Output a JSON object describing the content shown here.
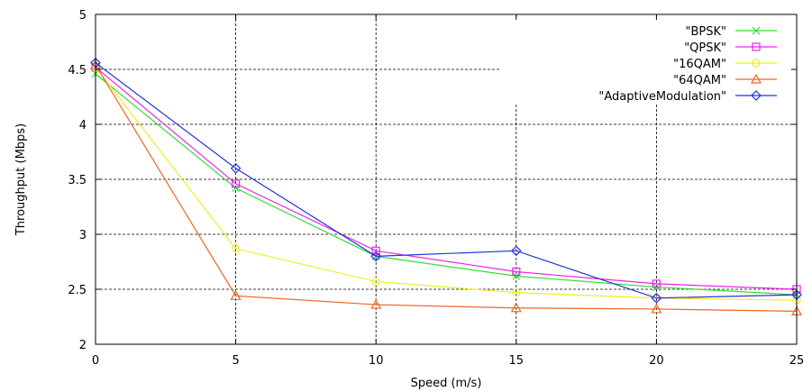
{
  "chart_data": {
    "type": "line",
    "xlabel": "Speed (m/s)",
    "ylabel": "Throughput (Mbps)",
    "xlim": [
      0,
      25
    ],
    "ylim": [
      2,
      5
    ],
    "xticks": [
      0,
      5,
      10,
      15,
      20,
      25
    ],
    "yticks": [
      2,
      2.5,
      3,
      3.5,
      4,
      4.5,
      5
    ],
    "x": [
      0,
      5,
      10,
      15,
      20,
      25
    ],
    "grid": true,
    "legend_position": "top-right",
    "series": [
      {
        "name": "\"BPSK\"",
        "color": "#33dd33",
        "marker": "x",
        "values": [
          4.46,
          3.42,
          2.8,
          2.62,
          2.52,
          2.45
        ]
      },
      {
        "name": "\"QPSK\"",
        "color": "#ee22ee",
        "marker": "square",
        "values": [
          4.52,
          3.46,
          2.85,
          2.66,
          2.55,
          2.5
        ]
      },
      {
        "name": "\"16QAM\"",
        "color": "#eeee22",
        "marker": "circle",
        "values": [
          4.52,
          2.87,
          2.57,
          2.47,
          2.42,
          2.4
        ]
      },
      {
        "name": "\"64QAM\"",
        "color": "#ee6622",
        "marker": "triangle",
        "values": [
          4.54,
          2.44,
          2.36,
          2.33,
          2.32,
          2.3
        ]
      },
      {
        "name": "\"AdaptiveModulation\"",
        "color": "#2233dd",
        "marker": "diamond",
        "values": [
          4.56,
          3.6,
          2.8,
          2.85,
          2.42,
          2.45
        ]
      }
    ]
  }
}
